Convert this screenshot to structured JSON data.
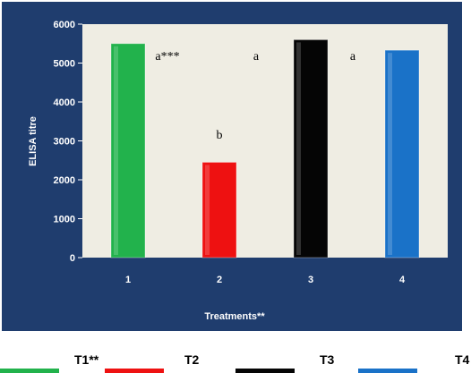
{
  "chart_data": {
    "type": "bar",
    "categories": [
      "1",
      "2",
      "3",
      "4"
    ],
    "values": [
      5500,
      2450,
      5600,
      5330
    ],
    "colors": [
      "#22b24c",
      "#ee1111",
      "#050505",
      "#1a72c8"
    ],
    "annotations": [
      "a***",
      "b",
      "a",
      "a"
    ],
    "xlabel": "Treatments**",
    "ylabel": "ELISA titre",
    "ylim": [
      0,
      6000
    ],
    "yticks": [
      "0",
      "1000",
      "2000",
      "3000",
      "4000",
      "5000",
      "6000"
    ],
    "grid": false,
    "legend": {
      "placement": "bottom",
      "entries": [
        "T1**",
        "T2",
        "T3",
        "T4"
      ]
    },
    "panel_color": "#1f3d6e",
    "plot_bg_color": "#efede3"
  }
}
